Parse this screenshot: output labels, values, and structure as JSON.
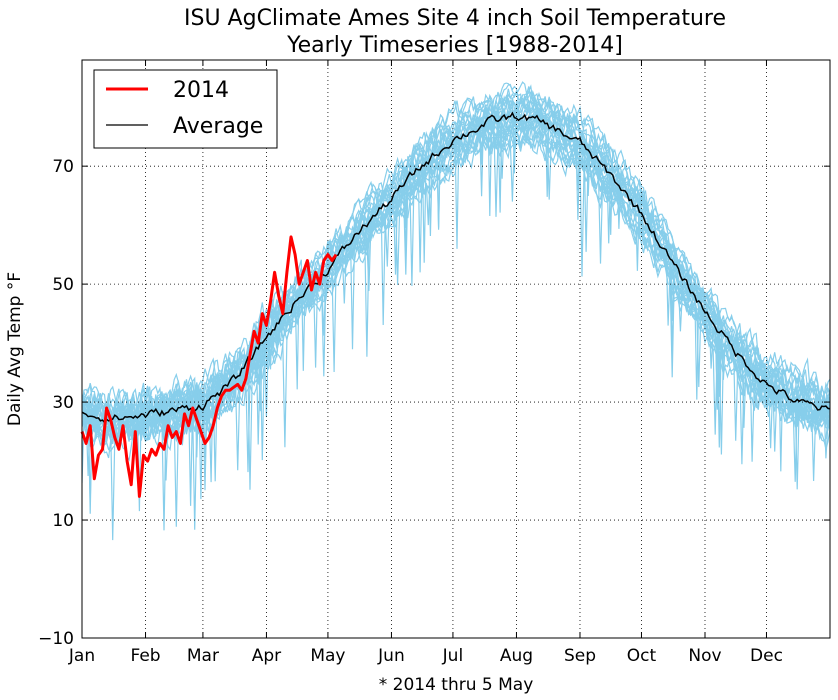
{
  "chart_data": {
    "type": "line",
    "title": "ISU AgClimate Ames Site 4 inch Soil Temperature",
    "subtitle": "Yearly Timeseries [1988-2014]",
    "xlabel": "",
    "ylabel": "Daily Avg Temp °F",
    "footnote": "* 2014 thru 5 May",
    "xlim": [
      1,
      366
    ],
    "ylim": [
      -10,
      88
    ],
    "grid": true,
    "legend": {
      "placement": "top-left",
      "entries": [
        {
          "label": "2014",
          "color": "#ff0000"
        },
        {
          "label": "Average",
          "color": "#000000"
        }
      ]
    },
    "x_ticks": [
      {
        "label": "Jan",
        "day": 1
      },
      {
        "label": "Feb",
        "day": 32
      },
      {
        "label": "Mar",
        "day": 60
      },
      {
        "label": "Apr",
        "day": 91
      },
      {
        "label": "May",
        "day": 121
      },
      {
        "label": "Jun",
        "day": 152
      },
      {
        "label": "Jul",
        "day": 182
      },
      {
        "label": "Aug",
        "day": 213
      },
      {
        "label": "Sep",
        "day": 244
      },
      {
        "label": "Oct",
        "day": 274
      },
      {
        "label": "Nov",
        "day": 305
      },
      {
        "label": "Dec",
        "day": 335
      }
    ],
    "y_ticks": [
      -10,
      10,
      30,
      50,
      70
    ],
    "colors": {
      "historical": "#87ceeb",
      "current": "#ff0000",
      "average": "#000000",
      "grid": "#000000"
    },
    "average_anchors": {
      "x": [
        1,
        10,
        20,
        32,
        45,
        60,
        75,
        91,
        105,
        121,
        135,
        152,
        165,
        182,
        200,
        213,
        225,
        244,
        260,
        274,
        290,
        305,
        320,
        335,
        350,
        366
      ],
      "y": [
        28.5,
        27.5,
        27.3,
        27.8,
        28.5,
        29.5,
        33.5,
        41,
        47,
        52.5,
        58.5,
        64.5,
        69.5,
        74.5,
        77.5,
        78.5,
        77.5,
        74,
        68,
        62,
        53,
        45.5,
        38.5,
        33,
        30,
        28.5
      ]
    },
    "series_2014": {
      "name": "2014",
      "x": [
        1,
        3,
        5,
        7,
        9,
        11,
        13,
        15,
        17,
        19,
        21,
        23,
        25,
        27,
        29,
        31,
        33,
        35,
        37,
        39,
        41,
        43,
        45,
        47,
        49,
        51,
        53,
        55,
        57,
        59,
        61,
        63,
        65,
        67,
        69,
        71,
        73,
        75,
        77,
        79,
        81,
        83,
        85,
        87,
        89,
        91,
        93,
        95,
        97,
        99,
        101,
        103,
        105,
        107,
        109,
        111,
        113,
        115,
        117,
        119,
        121,
        123,
        125
      ],
      "y": [
        25,
        23,
        26,
        17,
        21,
        22,
        29,
        27,
        24,
        22,
        26,
        20,
        16,
        25,
        14,
        21,
        20,
        22,
        21,
        23,
        22,
        26,
        24,
        25,
        23,
        28,
        26,
        29,
        27,
        25,
        23,
        24,
        26,
        29,
        31,
        32,
        32,
        32.5,
        33,
        32,
        34,
        38,
        42,
        40,
        45,
        43,
        47,
        52,
        48,
        45,
        52,
        58,
        55,
        50,
        52,
        54,
        49,
        52,
        50,
        54,
        55,
        54,
        55
      ]
    },
    "historical_series_count": 26
  }
}
